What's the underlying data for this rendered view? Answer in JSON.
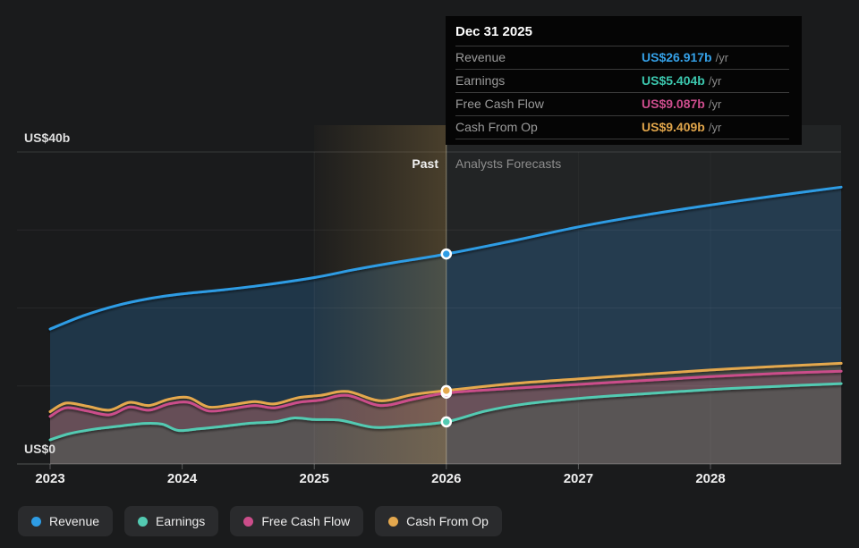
{
  "tooltip": {
    "date": "Dec 31 2025",
    "rows": [
      {
        "label": "Revenue",
        "value": "US$26.917b",
        "suffix": "/yr",
        "color": "#35a1e8"
      },
      {
        "label": "Earnings",
        "value": "US$5.404b",
        "suffix": "/yr",
        "color": "#3cc8af"
      },
      {
        "label": "Free Cash Flow",
        "value": "US$9.087b",
        "suffix": "/yr",
        "color": "#cd4d8d"
      },
      {
        "label": "Cash From Op",
        "value": "US$9.409b",
        "suffix": "/yr",
        "color": "#e0a54b"
      }
    ]
  },
  "sections": {
    "past_label": "Past",
    "forecast_label": "Analysts Forecasts"
  },
  "axis": {
    "y_top_label": "US$40b",
    "y_bottom_label": "US$0",
    "x_labels": [
      "2023",
      "2024",
      "2025",
      "2026",
      "2027",
      "2028"
    ]
  },
  "legend": [
    {
      "label": "Revenue",
      "color": "#2e9ce4"
    },
    {
      "label": "Earnings",
      "color": "#53cab2"
    },
    {
      "label": "Free Cash Flow",
      "color": "#cb4d8a"
    },
    {
      "label": "Cash From Op",
      "color": "#e4a84e"
    }
  ],
  "chart_data": {
    "type": "area",
    "title": "Financial history and analyst forecasts",
    "x_unit": "year",
    "y_unit": "US$ billions",
    "xlim": [
      2023,
      2029
    ],
    "ylim": [
      0,
      40
    ],
    "y_gridline_interval": 10,
    "divider_x": 2026,
    "highlight_range": [
      2025,
      2026
    ],
    "past_region_label": "Past",
    "forecast_region_label": "Analysts Forecasts",
    "divider_markers": {
      "Revenue": 26.917,
      "Free Cash Flow": 9.087,
      "Cash From Op": 9.409,
      "Earnings": 5.404
    },
    "series": [
      {
        "name": "Revenue",
        "color": "#2e9ce4",
        "fill": "rgba(46,130,200,0.26)",
        "x": [
          2023.0,
          2023.25,
          2023.5,
          2023.75,
          2024.0,
          2024.3,
          2024.6,
          2025.0,
          2025.3,
          2025.6,
          2026.0,
          2026.5,
          2027.0,
          2027.5,
          2028.0,
          2028.5,
          2028.99
        ],
        "values": [
          17.3,
          19.0,
          20.3,
          21.2,
          21.8,
          22.3,
          22.9,
          23.9,
          24.9,
          25.8,
          26.917,
          28.6,
          30.4,
          31.9,
          33.2,
          34.4,
          35.5
        ]
      },
      {
        "name": "Cash From Op",
        "color": "#e4a84e",
        "fill": "rgba(228,168,78,0.22)",
        "x": [
          2023.0,
          2023.12,
          2023.28,
          2023.45,
          2023.6,
          2023.75,
          2023.9,
          2024.05,
          2024.2,
          2024.38,
          2024.55,
          2024.7,
          2024.88,
          2025.05,
          2025.25,
          2025.5,
          2025.75,
          2026.0,
          2026.5,
          2027.0,
          2027.5,
          2028.0,
          2028.5,
          2028.99
        ],
        "values": [
          6.7,
          7.8,
          7.4,
          6.9,
          7.9,
          7.5,
          8.3,
          8.5,
          7.3,
          7.6,
          8.0,
          7.7,
          8.5,
          8.8,
          9.3,
          8.1,
          8.9,
          9.409,
          10.3,
          10.9,
          11.5,
          12.05,
          12.5,
          12.9
        ]
      },
      {
        "name": "Free Cash Flow",
        "color": "#cb4d8a",
        "fill": "rgba(203,77,138,0.22)",
        "x": [
          2023.0,
          2023.12,
          2023.28,
          2023.45,
          2023.6,
          2023.75,
          2023.9,
          2024.05,
          2024.2,
          2024.38,
          2024.55,
          2024.7,
          2024.88,
          2025.05,
          2025.25,
          2025.5,
          2025.75,
          2026.0,
          2026.5,
          2027.0,
          2027.5,
          2028.0,
          2028.5,
          2028.99
        ],
        "values": [
          6.1,
          7.2,
          6.8,
          6.3,
          7.3,
          6.9,
          7.7,
          7.9,
          6.8,
          7.1,
          7.5,
          7.2,
          7.9,
          8.2,
          8.8,
          7.5,
          8.3,
          9.087,
          9.7,
          10.2,
          10.7,
          11.2,
          11.6,
          11.9
        ]
      },
      {
        "name": "Earnings",
        "color": "#53cab2",
        "fill": "rgba(86,85,84,0.88)",
        "x": [
          2023.0,
          2023.15,
          2023.35,
          2023.55,
          2023.72,
          2023.85,
          2023.97,
          2024.12,
          2024.3,
          2024.5,
          2024.7,
          2024.85,
          2025.0,
          2025.2,
          2025.45,
          2025.7,
          2026.0,
          2026.3,
          2026.6,
          2027.0,
          2027.5,
          2028.0,
          2028.5,
          2028.99
        ],
        "values": [
          3.1,
          3.9,
          4.5,
          4.9,
          5.2,
          5.1,
          4.3,
          4.5,
          4.8,
          5.2,
          5.4,
          5.9,
          5.7,
          5.6,
          4.7,
          4.9,
          5.404,
          6.8,
          7.7,
          8.4,
          9.0,
          9.55,
          9.95,
          10.3
        ]
      }
    ]
  }
}
